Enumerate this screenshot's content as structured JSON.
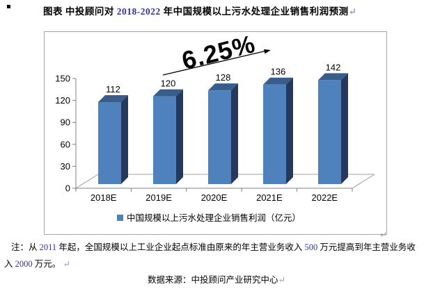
{
  "page": {
    "bullet": "▪"
  },
  "marks": {
    "pilcrow": "↵"
  },
  "title": {
    "segments": [
      {
        "text": "图表",
        "color": "#000000"
      },
      {
        "text": "  中投顾问对 ",
        "color": "#000000"
      },
      {
        "text": "2018-2022",
        "color": "#333399"
      },
      {
        "text": " 年中国规模以上污水处理企业销售利润预测",
        "color": "#000000"
      },
      {
        "text": "↵",
        "color": "#8a9cc0"
      }
    ]
  },
  "chart_data": {
    "type": "bar",
    "style": "3d-column",
    "title": "",
    "categories": [
      "2018E",
      "2019E",
      "2020E",
      "2021E",
      "2022E"
    ],
    "values": [
      112,
      120,
      128,
      136,
      142
    ],
    "series": [
      {
        "name": "中国规模以上污水处理企业销售利润（亿元）",
        "values": [
          112,
          120,
          128,
          136,
          142
        ]
      }
    ],
    "xlabel": "",
    "ylabel": "",
    "ylim": [
      0,
      150
    ],
    "y_ticks": [
      0,
      30,
      60,
      90,
      120,
      150
    ],
    "grid": false,
    "legend_position": "bottom",
    "annotation": {
      "text": "6.25%"
    },
    "colors": {
      "bar_front": "#4F81BD",
      "bar_top": "#385D8A",
      "bar_side": "#24395B",
      "axis": "#808080",
      "floor": "#a0a0a0",
      "frame": "#a6a6a6",
      "label": "#000000",
      "annotation": "#000000"
    }
  },
  "note": {
    "line1_segments": [
      {
        "text": "注：从 ",
        "color": "#000000"
      },
      {
        "text": "2011",
        "color": "#333399"
      },
      {
        "text": " 年起，全国规模以上工业企业起点标准由原来的年主营业务收入 ",
        "color": "#000000"
      },
      {
        "text": "500",
        "color": "#333399"
      },
      {
        "text": " 万元提高到年主营业务收",
        "color": "#000000"
      }
    ],
    "line2_segments": [
      {
        "text": "入 ",
        "color": "#000000"
      },
      {
        "text": "2000",
        "color": "#333399"
      },
      {
        "text": " 万元。",
        "color": "#000000"
      },
      {
        "text": " ↵",
        "color": "#8a9cc0"
      }
    ],
    "source_segments": [
      {
        "text": "数据来源：中投顾问产业研究中心",
        "color": "#000000"
      },
      {
        "text": "↵",
        "color": "#8a9cc0"
      }
    ]
  }
}
